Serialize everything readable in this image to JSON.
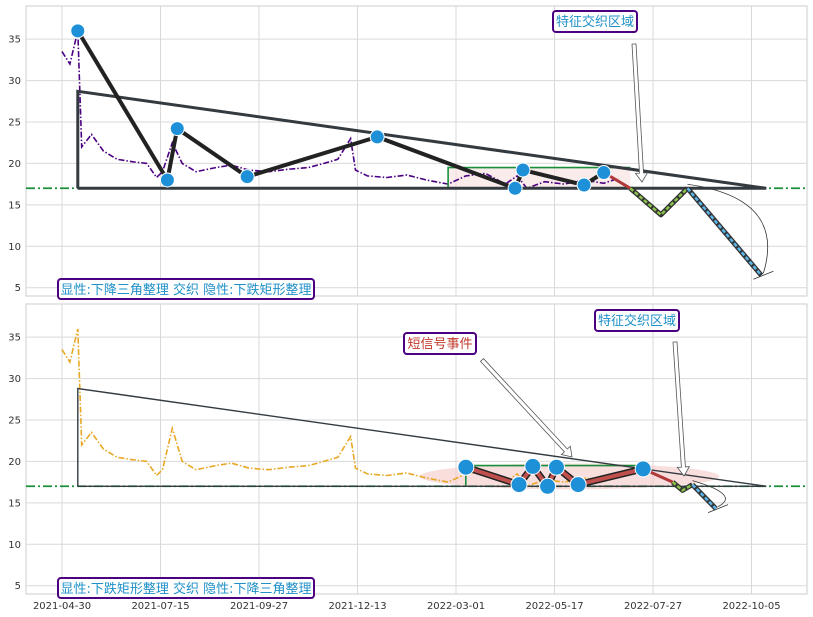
{
  "chart_data": [
    {
      "type": "line",
      "panel": "top",
      "ylim": [
        4,
        39
      ],
      "yticks": [
        "5",
        "10",
        "15",
        "20",
        "25",
        "30",
        "35"
      ],
      "price_color": "#4b0082",
      "support_level": 17,
      "series": [
        {
          "values": [
            [
              0,
              33.5
            ],
            [
              0.08,
              32
            ],
            [
              0.16,
              36
            ],
            [
              0.2,
              22
            ],
            [
              0.3,
              23.5
            ],
            [
              0.42,
              21.5
            ],
            [
              0.56,
              20.5
            ],
            [
              0.72,
              20.2
            ],
            [
              0.86,
              20
            ],
            [
              0.96,
              18.3
            ],
            [
              1.02,
              19
            ],
            [
              1.12,
              22.5
            ],
            [
              1.22,
              20
            ],
            [
              1.36,
              19
            ],
            [
              1.56,
              19.5
            ],
            [
              1.72,
              19.8
            ],
            [
              1.9,
              19.2
            ],
            [
              2.1,
              19
            ],
            [
              2.3,
              19.3
            ],
            [
              2.5,
              19.5
            ],
            [
              2.66,
              20
            ],
            [
              2.8,
              20.5
            ],
            [
              2.93,
              23
            ],
            [
              2.98,
              19.2
            ],
            [
              3.1,
              18.5
            ],
            [
              3.3,
              18.3
            ],
            [
              3.5,
              18.6
            ],
            [
              3.7,
              18
            ],
            [
              3.92,
              17.5
            ],
            [
              4.1,
              18.5
            ],
            [
              4.3,
              18.8
            ],
            [
              4.5,
              17.5
            ],
            [
              4.62,
              18.5
            ],
            [
              4.72,
              17
            ],
            [
              4.9,
              17.8
            ],
            [
              5.1,
              17.5
            ],
            [
              5.3,
              18
            ],
            [
              5.5,
              17.6
            ],
            [
              5.65,
              18.2
            ]
          ]
        }
      ],
      "zigzag": [
        [
          0.16,
          36
        ],
        [
          1.07,
          18
        ],
        [
          1.17,
          24.2
        ],
        [
          1.88,
          18.4
        ],
        [
          3.2,
          23.2
        ],
        [
          4.6,
          17
        ],
        [
          4.68,
          19.2
        ],
        [
          5.3,
          17.4
        ],
        [
          5.5,
          18.9
        ]
      ],
      "forecast_red": [
        [
          5.5,
          18.9
        ],
        [
          5.77,
          17
        ]
      ],
      "forecast_green": [
        [
          5.77,
          17
        ],
        [
          6.08,
          13.8
        ],
        [
          6.35,
          17
        ]
      ],
      "forecast_blue": [
        [
          6.35,
          17
        ],
        [
          7.1,
          6.5
        ]
      ],
      "triangle_apex": [
        7.15,
        17
      ],
      "triangle_left_top": [
        0.16,
        28.7
      ],
      "triangle_left_bottom": [
        0.16,
        17
      ],
      "rectangle": {
        "x0": 3.92,
        "x1": 5.77,
        "y0": 17,
        "y1": 19.5
      },
      "annotations": [
        {
          "text": "特征交织区域",
          "color": "#1e90c8"
        },
        {
          "text": "显性:下降三角整理 交织 隐性:下跌矩形整理",
          "color": "#1e90c8"
        }
      ]
    },
    {
      "type": "line",
      "panel": "bottom",
      "ylim": [
        4,
        39
      ],
      "yticks": [
        "5",
        "10",
        "15",
        "20",
        "25",
        "30",
        "35"
      ],
      "xticks": [
        "2021-04-30",
        "2021-07-15",
        "2021-09-27",
        "2021-12-13",
        "2022-03-01",
        "2022-05-17",
        "2022-07-27",
        "2022-10-05"
      ],
      "price_color": "#e8a825",
      "support_level": 17,
      "series": [
        {
          "values": [
            [
              0,
              33.5
            ],
            [
              0.08,
              32
            ],
            [
              0.16,
              36
            ],
            [
              0.2,
              22
            ],
            [
              0.3,
              23.5
            ],
            [
              0.42,
              21.5
            ],
            [
              0.56,
              20.5
            ],
            [
              0.72,
              20.2
            ],
            [
              0.86,
              20
            ],
            [
              0.96,
              18.3
            ],
            [
              1.02,
              19
            ],
            [
              1.12,
              24
            ],
            [
              1.22,
              20
            ],
            [
              1.36,
              19
            ],
            [
              1.56,
              19.5
            ],
            [
              1.72,
              19.8
            ],
            [
              1.9,
              19.2
            ],
            [
              2.1,
              19
            ],
            [
              2.3,
              19.3
            ],
            [
              2.5,
              19.5
            ],
            [
              2.66,
              20
            ],
            [
              2.8,
              20.5
            ],
            [
              2.93,
              23
            ],
            [
              2.98,
              19.2
            ],
            [
              3.1,
              18.5
            ],
            [
              3.3,
              18.3
            ],
            [
              3.5,
              18.6
            ],
            [
              3.7,
              18
            ],
            [
              3.92,
              17.5
            ],
            [
              4.1,
              18.5
            ],
            [
              4.3,
              18.8
            ],
            [
              4.5,
              17.5
            ],
            [
              4.62,
              18.5
            ],
            [
              4.72,
              17
            ],
            [
              4.9,
              17.8
            ],
            [
              5.1,
              17.5
            ],
            [
              5.3,
              18
            ],
            [
              5.5,
              17.6
            ],
            [
              5.65,
              18.2
            ]
          ]
        }
      ],
      "zigzag": [
        [
          4.1,
          19.3
        ],
        [
          4.64,
          17.2
        ],
        [
          4.78,
          19.4
        ],
        [
          4.93,
          17
        ],
        [
          5.02,
          19.3
        ],
        [
          5.24,
          17.2
        ],
        [
          5.9,
          19.1
        ]
      ],
      "forecast_red": [
        [
          5.9,
          19.1
        ],
        [
          6.2,
          17.5
        ]
      ],
      "forecast_green": [
        [
          6.2,
          17.5
        ],
        [
          6.3,
          16.5
        ],
        [
          6.4,
          17.2
        ]
      ],
      "forecast_blue": [
        [
          6.4,
          17.2
        ],
        [
          6.64,
          14.3
        ]
      ],
      "triangle_apex": [
        7.15,
        17
      ],
      "triangle_left_top": [
        0.16,
        28.8
      ],
      "triangle_left_bottom": [
        0.16,
        17
      ],
      "rectangle": {
        "x0": 4.1,
        "x1": 5.9,
        "y0": 17,
        "y1": 19.5
      },
      "annotations": [
        {
          "text": "特征交织区域",
          "color": "#1e90c8"
        },
        {
          "text": "短信号事件",
          "color": "#c0392b"
        },
        {
          "text": "显性:下跌矩形整理 交织 隐性:下降三角整理",
          "color": "#1e90c8"
        }
      ]
    }
  ]
}
